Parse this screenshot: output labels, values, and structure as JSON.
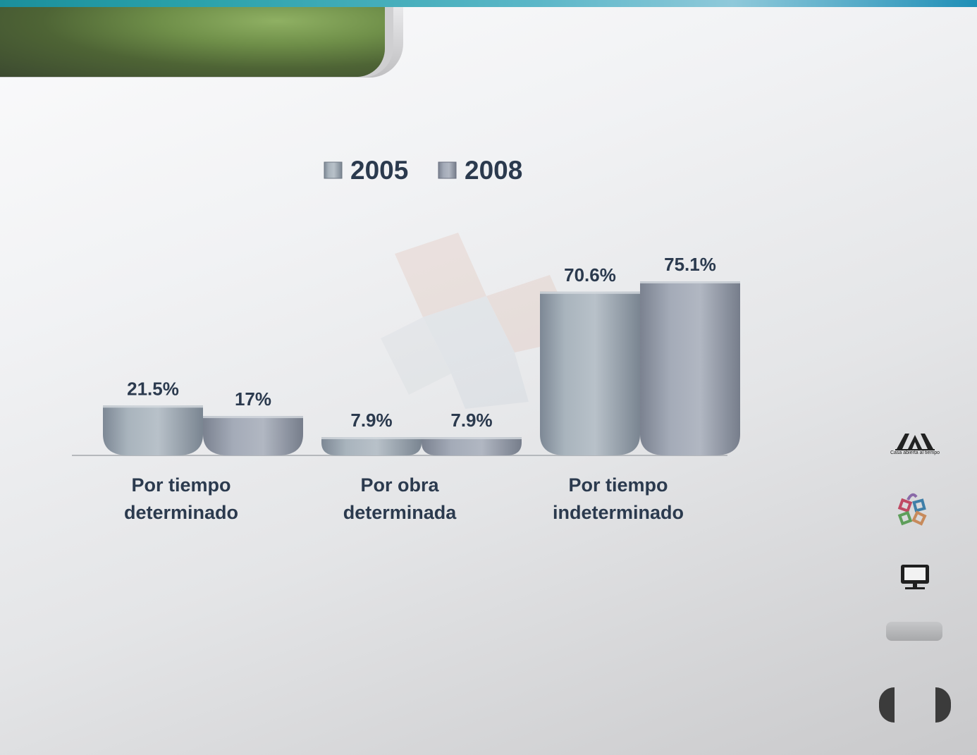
{
  "branding": {
    "uam_caption": "Casa abierta al tiempo"
  },
  "icons": {
    "logo": "uam-logo-icon",
    "emblem": "colored-squares-emblem-icon",
    "monitor": "monitor-icon",
    "prev": "previous-arrow-icon",
    "next": "next-arrow-icon"
  },
  "colors": {
    "series_2005": "#9aa6b0",
    "series_2008": "#989fad",
    "label_text": "#2b3a4e",
    "banner_green": "#6f8f49",
    "accent_teal": "#2aa2aa"
  },
  "chart_data": {
    "type": "bar",
    "legend_position": "top",
    "grid": false,
    "categories": [
      [
        "Por tiempo",
        "determinado"
      ],
      [
        "Por obra",
        "determinada"
      ],
      [
        "Por tiempo",
        "indeterminado"
      ]
    ],
    "series": [
      {
        "name": "2005",
        "values": [
          21.5,
          7.9,
          70.6
        ],
        "labels": [
          "21.5%",
          "7.9%",
          "70.6%"
        ]
      },
      {
        "name": "2008",
        "values": [
          17,
          7.9,
          75.1
        ],
        "labels": [
          "17%",
          "7.9%",
          "75.1%"
        ]
      }
    ],
    "ylim": [
      0,
      75.1
    ]
  }
}
